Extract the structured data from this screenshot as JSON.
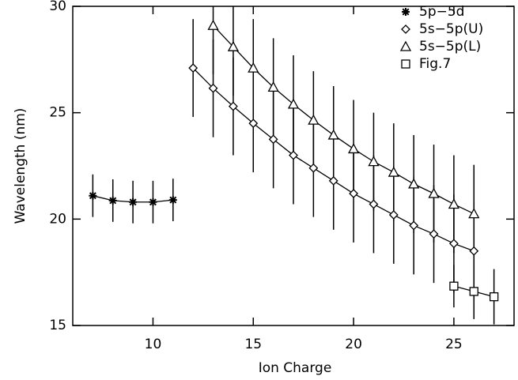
{
  "chart_data": {
    "type": "line",
    "x_label": "Ion Charge",
    "y_label": "Wavelength (nm)",
    "xlim": [
      6,
      28
    ],
    "xticks": [
      10,
      15,
      20,
      25
    ],
    "ylim": [
      15,
      30
    ],
    "yticks": [
      15,
      20,
      25,
      30
    ],
    "series": [
      {
        "name": "5p−5d",
        "marker": "star",
        "color": "#000000",
        "x": [
          7,
          8,
          9,
          10,
          11
        ],
        "values": [
          21.1,
          20.87,
          20.8,
          20.8,
          20.9
        ],
        "errors": [
          1.0,
          1.0,
          1.0,
          1.0,
          1.0
        ]
      },
      {
        "name": "5s−5p(U)",
        "marker": "diamond",
        "color": "#000000",
        "x": [
          12,
          13,
          14,
          15,
          16,
          17,
          18,
          19,
          20,
          21,
          22,
          23,
          24,
          25,
          26
        ],
        "values": [
          27.1,
          26.15,
          25.3,
          24.5,
          23.75,
          23.0,
          22.4,
          21.8,
          21.2,
          20.7,
          20.2,
          19.7,
          19.3,
          18.85,
          18.5
        ],
        "errors": [
          2.3,
          2.3,
          2.3,
          2.3,
          2.3,
          2.3,
          2.3,
          2.3,
          2.3,
          2.3,
          2.3,
          2.3,
          2.3,
          2.3,
          2.3
        ]
      },
      {
        "name": "5s−5p(L)",
        "marker": "triangle",
        "color": "#000000",
        "x": [
          13,
          14,
          15,
          16,
          17,
          18,
          19,
          20,
          21,
          22,
          23,
          24,
          25,
          26
        ],
        "values": [
          29.1,
          28.1,
          27.1,
          26.2,
          25.4,
          24.65,
          23.95,
          23.3,
          22.7,
          22.2,
          21.65,
          21.2,
          20.7,
          20.25
        ],
        "errors": [
          2.3,
          2.3,
          2.3,
          2.3,
          2.3,
          2.3,
          2.3,
          2.3,
          2.3,
          2.3,
          2.3,
          2.3,
          2.3,
          2.3
        ]
      },
      {
        "name": "Fig.7",
        "marker": "square",
        "color": "#000000",
        "x": [
          25,
          26,
          27
        ],
        "values": [
          16.85,
          16.6,
          16.35
        ],
        "errors": [
          1.0,
          1.3,
          1.3
        ]
      }
    ]
  }
}
